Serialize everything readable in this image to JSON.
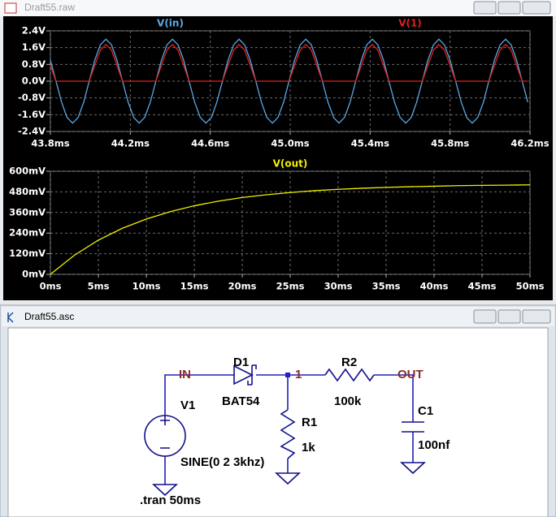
{
  "plot_window": {
    "title": "Draft55.raw"
  },
  "chart_data": [
    {
      "type": "line",
      "grid": true,
      "x": [
        43.8,
        43.828,
        43.856,
        43.883,
        43.911,
        43.939,
        43.967,
        43.994,
        44.022,
        44.05,
        44.078,
        44.106,
        44.133,
        44.161,
        44.189,
        44.217,
        44.244,
        44.272,
        44.3,
        44.328,
        44.356,
        44.383,
        44.411,
        44.439,
        44.467,
        44.494,
        44.522,
        44.55,
        44.578,
        44.606,
        44.633,
        44.661,
        44.689,
        44.717,
        44.744,
        44.772,
        44.8,
        44.828,
        44.856,
        44.883,
        44.911,
        44.939,
        44.967,
        44.994,
        45.022,
        45.05,
        45.078,
        45.106,
        45.133,
        45.161,
        45.189,
        45.217,
        45.244,
        45.272,
        45.3,
        45.328,
        45.356,
        45.383,
        45.411,
        45.439,
        45.467,
        45.494,
        45.522,
        45.55,
        45.578,
        45.606,
        45.633,
        45.661,
        45.689,
        45.717,
        45.744,
        45.772,
        45.8,
        45.828,
        45.856,
        45.883,
        45.911,
        45.939,
        45.967,
        45.994,
        46.022,
        46.05,
        46.078,
        46.106,
        46.133,
        46.161,
        46.189
      ],
      "series": [
        {
          "name": "V(in)",
          "color": "#5aa9e6",
          "values": [
            1,
            0,
            -1,
            -1.73,
            -2,
            -1.73,
            -1,
            0,
            1,
            1.73,
            2,
            1.73,
            1,
            0,
            -1,
            -1.73,
            -2,
            -1.73,
            -1,
            0,
            1,
            1.73,
            2,
            1.73,
            1,
            0,
            -1,
            -1.73,
            -2,
            -1.73,
            -1,
            0,
            1,
            1.73,
            2,
            1.73,
            1,
            0,
            -1,
            -1.73,
            -2,
            -1.73,
            -1,
            0,
            1,
            1.73,
            2,
            1.73,
            1,
            0,
            -1,
            -1.73,
            -2,
            -1.73,
            -1,
            0,
            1,
            1.73,
            2,
            1.73,
            1,
            0,
            -1,
            -1.73,
            -2,
            -1.73,
            -1,
            0,
            1,
            1.73,
            2,
            1.73,
            1,
            0,
            -1,
            -1.73,
            -2,
            -1.73,
            -1,
            0,
            1,
            1.73,
            2,
            1.73,
            1,
            0,
            -1
          ]
        },
        {
          "name": "V(1)",
          "color": "#e02020",
          "values": [
            0.75,
            0,
            0,
            0,
            0,
            0,
            0,
            0,
            0.75,
            1.48,
            1.75,
            1.48,
            0.75,
            0,
            0,
            0,
            0,
            0,
            0,
            0,
            0.75,
            1.48,
            1.75,
            1.48,
            0.75,
            0,
            0,
            0,
            0,
            0,
            0,
            0,
            0.75,
            1.48,
            1.75,
            1.48,
            0.75,
            0,
            0,
            0,
            0,
            0,
            0,
            0,
            0.75,
            1.48,
            1.75,
            1.48,
            0.75,
            0,
            0,
            0,
            0,
            0,
            0,
            0,
            0.75,
            1.48,
            1.75,
            1.48,
            0.75,
            0,
            0,
            0,
            0,
            0,
            0,
            0,
            0.75,
            1.48,
            1.75,
            1.48,
            0.75,
            0,
            0,
            0,
            0,
            0,
            0,
            0,
            0.75,
            1.48,
            1.75,
            1.48,
            0.75,
            0,
            0
          ]
        }
      ],
      "xlim": [
        43.8,
        46.2
      ],
      "xticks": [
        {
          "value": 43.8,
          "label": "43.8ms"
        },
        {
          "value": 44.2,
          "label": "44.2ms"
        },
        {
          "value": 44.6,
          "label": "44.6ms"
        },
        {
          "value": 45.0,
          "label": "45.0ms"
        },
        {
          "value": 45.4,
          "label": "45.4ms"
        },
        {
          "value": 45.8,
          "label": "45.8ms"
        },
        {
          "value": 46.2,
          "label": "46.2ms"
        }
      ],
      "ylim": [
        -2.4,
        2.4
      ],
      "yticks": [
        {
          "value": 2.4,
          "label": "2.4V"
        },
        {
          "value": 1.6,
          "label": "1.6V"
        },
        {
          "value": 0.8,
          "label": "0.8V"
        },
        {
          "value": 0,
          "label": "0.0V"
        },
        {
          "value": -0.8,
          "label": "-0.8V"
        },
        {
          "value": -1.6,
          "label": "-1.6V"
        },
        {
          "value": -2.4,
          "label": "-2.4V"
        }
      ]
    },
    {
      "type": "line",
      "grid": true,
      "x": [
        0,
        2.5,
        5,
        7.5,
        10,
        12.5,
        15,
        17.5,
        20,
        22.5,
        25,
        27.5,
        30,
        32.5,
        35,
        37.5,
        40,
        42.5,
        45,
        47.5,
        50
      ],
      "series": [
        {
          "name": "V(out)",
          "color": "#f0f000",
          "values": [
            0,
            111,
            199,
            268,
            322,
            365,
            399,
            426,
            447,
            463,
            476,
            487,
            495,
            501,
            506,
            510,
            513,
            516,
            518,
            519,
            521
          ]
        }
      ],
      "xlim": [
        0,
        50
      ],
      "xticks": [
        {
          "value": 0,
          "label": "0ms"
        },
        {
          "value": 5,
          "label": "5ms"
        },
        {
          "value": 10,
          "label": "10ms"
        },
        {
          "value": 15,
          "label": "15ms"
        },
        {
          "value": 20,
          "label": "20ms"
        },
        {
          "value": 25,
          "label": "25ms"
        },
        {
          "value": 30,
          "label": "30ms"
        },
        {
          "value": 35,
          "label": "35ms"
        },
        {
          "value": 40,
          "label": "40ms"
        },
        {
          "value": 45,
          "label": "45ms"
        },
        {
          "value": 50,
          "label": "50ms"
        }
      ],
      "ylim": [
        0,
        600
      ],
      "yticks": [
        {
          "value": 600,
          "label": "600mV"
        },
        {
          "value": 480,
          "label": "480mV"
        },
        {
          "value": 360,
          "label": "360mV"
        },
        {
          "value": 240,
          "label": "240mV"
        },
        {
          "value": 120,
          "label": "120mV"
        },
        {
          "value": 0,
          "label": "0mV"
        }
      ]
    }
  ],
  "schematic_window": {
    "title": "Draft55.asc",
    "labels": {
      "net_in": "IN",
      "net_1": "1",
      "net_out": "OUT",
      "d1_name": "D1",
      "d1_value": "BAT54",
      "r2_name": "R2",
      "r2_value": "100k",
      "r1_name": "R1",
      "r1_value": "1k",
      "c1_name": "C1",
      "c1_value": "100nf",
      "v1_name": "V1",
      "v1_value": "SINE(0 2 3khz)",
      "directive": ".tran 50ms"
    }
  }
}
